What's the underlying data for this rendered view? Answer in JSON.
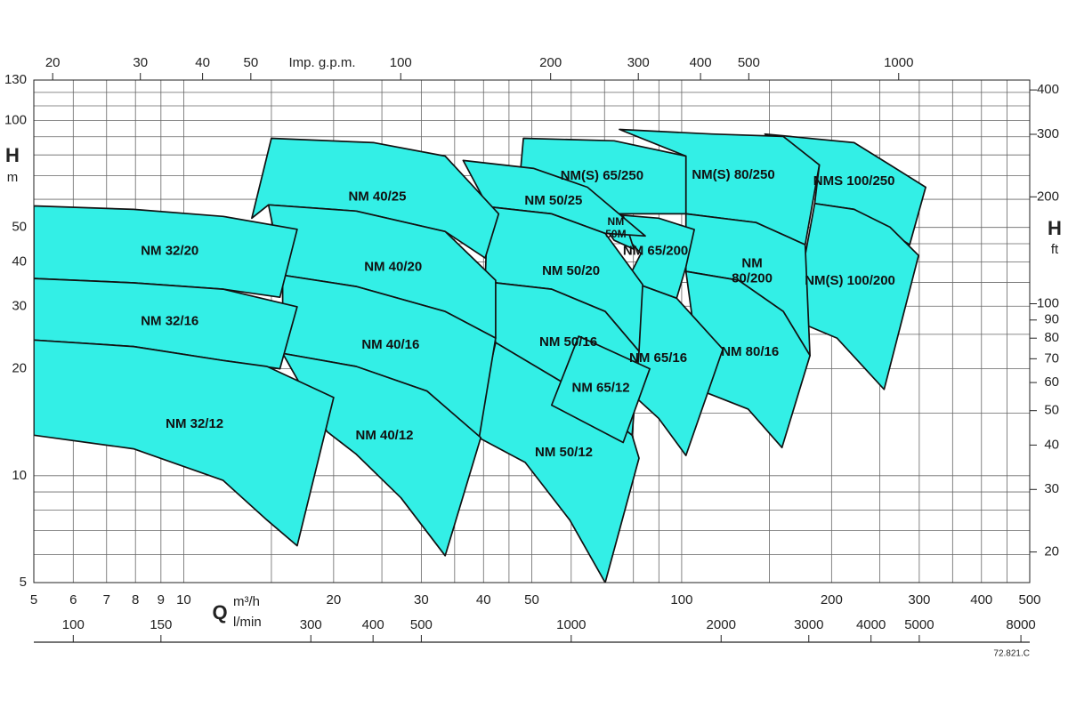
{
  "chart_data": {
    "type": "region",
    "xlim": [
      5,
      500
    ],
    "xscale": "log",
    "xticks": [
      5,
      6,
      7,
      8,
      9,
      10,
      20,
      30,
      40,
      50,
      100,
      200,
      300,
      400,
      500
    ],
    "xgrid": [
      15,
      25,
      35,
      45,
      60,
      70,
      80,
      90,
      150,
      250,
      350,
      450
    ],
    "ylim": [
      5,
      130
    ],
    "yscale": "log",
    "yticks": [
      5,
      10,
      20,
      30,
      40,
      50,
      100,
      130
    ],
    "ygrid": [
      6,
      7,
      8,
      9,
      15,
      25,
      35,
      45,
      60,
      70,
      80,
      90,
      110,
      120
    ],
    "x2lim": [
      18.33,
      1833
    ],
    "x2ticks": [
      20,
      30,
      40,
      50,
      100,
      200,
      300,
      400,
      500,
      1000
    ],
    "x3lim": [
      83.33,
      8333
    ],
    "x3ticks": [
      100,
      150,
      300,
      400,
      500,
      1000,
      2000,
      3000,
      4000,
      5000,
      8000
    ],
    "y2lim": [
      16.4,
      426.5
    ],
    "y2ticks": [
      20,
      30,
      40,
      50,
      60,
      70,
      80,
      90,
      100,
      200,
      300,
      400
    ],
    "x_label": "Q",
    "x_unit": "m³/h",
    "x2_unit": "Imp. g.p.m.",
    "x3_unit": "l/min",
    "y_label": "H",
    "y_unit": "m",
    "y2_label": "H",
    "y2_unit": "ft",
    "code": "72.821.C",
    "grid": true,
    "color": "#33efe6",
    "regions": [
      {
        "label": [
          "NMS 100/250"
        ],
        "q": [
          147,
          222,
          262,
          309,
          287,
          222,
          185,
          189
        ],
        "h": [
          91.6,
          86.6,
          75,
          64.9,
          44.7,
          56.2,
          58.4,
          75
        ]
      },
      {
        "label": [
          "NM(S) 100/200"
        ],
        "q": [
          185,
          222,
          262,
          299,
          255,
          205,
          177,
          170
        ],
        "h": [
          58.4,
          56.2,
          50.1,
          41.7,
          17.5,
          24.4,
          26.6,
          30.7
        ]
      },
      {
        "label": [
          "NM(S) 80/250"
        ],
        "q": [
          75,
          115,
          160,
          189,
          177,
          141,
          102,
          102
        ],
        "h": [
          94.4,
          91.6,
          90.2,
          75,
          44.7,
          51.6,
          54.6,
          79.4
        ]
      },
      {
        "label": [
          "NM",
          "80/200"
        ],
        "q": [
          102,
          141,
          177,
          181,
          160,
          130,
          102
        ],
        "h": [
          54.6,
          51.6,
          44.7,
          21.8,
          29.0,
          35.5,
          37.6
        ]
      },
      {
        "label": [
          "NM 80/16"
        ],
        "q": [
          102,
          130,
          160,
          181,
          159,
          136,
          110
        ],
        "h": [
          37.6,
          35.5,
          29.0,
          21.8,
          12.0,
          15.4,
          17.3
        ]
      },
      {
        "label": [
          "NM(S) 65/250"
        ],
        "q": [
          48.1,
          73.2,
          102,
          102,
          70.2,
          62.1,
          47.5
        ],
        "h": [
          89.1,
          87.7,
          79.4,
          54.6,
          54.6,
          59.6,
          72.9
        ]
      },
      {
        "label": [
          "NM 65/200"
        ],
        "q": [
          70.2,
          89.9,
          106,
          102,
          97.7,
          77.8,
          82.8
        ],
        "h": [
          54.6,
          53.1,
          49.3,
          38.7,
          31.6,
          35.5,
          42.2
        ]
      },
      {
        "label": [
          "NM",
          "50M"
        ],
        "q": [
          66.0,
          76.3,
          80.2,
          73.2
        ],
        "h": [
          56.2,
          54.0,
          43.4,
          46.0
        ]
      },
      {
        "label": [
          "NM 65/16"
        ],
        "q": [
          77.8,
          97.7,
          121,
          102,
          89.9,
          82.1,
          76.3,
          79.5
        ],
        "h": [
          35.5,
          31.6,
          22.7,
          11.4,
          14.5,
          16.3,
          19.4,
          32.5
        ]
      },
      {
        "label": [
          "NM 50/25"
        ],
        "q": [
          36.4,
          50.5,
          64.7,
          84.5,
          70.2,
          54.8,
          40.8
        ],
        "h": [
          77.2,
          73.3,
          64.9,
          47.3,
          48.1,
          54.6,
          57.2
        ]
      },
      {
        "label": [
          "NM 50/20"
        ],
        "q": [
          40.8,
          54.8,
          70.2,
          83.5,
          82.1,
          70.2,
          54.8,
          40.3
        ],
        "h": [
          57.2,
          54.6,
          48.1,
          34.5,
          22.4,
          29.0,
          33.5,
          35.2
        ]
      },
      {
        "label": [
          "NM 50/16"
        ],
        "q": [
          40.3,
          54.8,
          70.2,
          82.1,
          79.5,
          59.6,
          42.3
        ],
        "h": [
          35.2,
          33.5,
          29.0,
          22.4,
          13.0,
          17.8,
          23.7
        ]
      },
      {
        "label": [
          "NM 50/12"
        ],
        "q": [
          42.3,
          59.6,
          79.5,
          82.1,
          70.2,
          59.6,
          48.5,
          38.3
        ],
        "h": [
          23.7,
          17.8,
          13.0,
          11.2,
          5.0,
          7.5,
          10.9,
          13.0
        ]
      },
      {
        "label": [
          "NM 65/12"
        ],
        "q": [
          62.1,
          86.3,
          76.3,
          54.8
        ],
        "h": [
          24.7,
          20.0,
          12.4,
          15.8
        ]
      },
      {
        "label": [
          "NM 40/25"
        ],
        "q": [
          15.0,
          24.1,
          33.5,
          42.9,
          40.3,
          33.5,
          22.2,
          14.8,
          13.7
        ],
        "h": [
          89.1,
          86.6,
          79.4,
          54.6,
          41.0,
          48.7,
          55.6,
          57.9,
          53.1
        ]
      },
      {
        "label": [
          "NM 40/20"
        ],
        "q": [
          14.8,
          22.2,
          33.5,
          42.3,
          42.3,
          33.5,
          22.2,
          15.8
        ],
        "h": [
          57.9,
          55.6,
          48.7,
          35.5,
          24.4,
          29.0,
          34.1,
          36.7
        ]
      },
      {
        "label": [
          "NM 40/16"
        ],
        "q": [
          15.8,
          22.2,
          33.5,
          42.3,
          39.2,
          30.8,
          22.2,
          15.8
        ],
        "h": [
          36.7,
          34.1,
          29.0,
          24.4,
          12.8,
          17.3,
          20.3,
          22.1
        ]
      },
      {
        "label": [
          "NM 40/12"
        ],
        "q": [
          15.8,
          22.2,
          30.8,
          39.5,
          33.5,
          27.3,
          22.2,
          19.4
        ],
        "h": [
          22.1,
          20.3,
          17.3,
          12.8,
          5.95,
          8.66,
          11.5,
          13.3
        ]
      },
      {
        "label": [
          "NM 32/20"
        ],
        "q": [
          5,
          7.93,
          12.0,
          16.9,
          15.6,
          12.0,
          7.93,
          5
        ],
        "h": [
          57.5,
          56.2,
          53.7,
          49.4,
          31.8,
          33.5,
          34.9,
          35.9
        ]
      },
      {
        "label": [
          "NM 32/16"
        ],
        "q": [
          5,
          7.93,
          12.0,
          16.9,
          15.6,
          12.0,
          7.93,
          5
        ],
        "h": [
          35.9,
          34.9,
          33.5,
          29.9,
          20,
          21.1,
          23.1,
          24.1
        ]
      },
      {
        "label": [
          "NM 32/12"
        ],
        "q": [
          5,
          7.93,
          12.0,
          14.7,
          20.0,
          16.9,
          14.7,
          12.0,
          7.93,
          5
        ],
        "h": [
          24.1,
          23.1,
          21.1,
          20.3,
          16.6,
          6.35,
          7.5,
          9.7,
          11.9,
          13.0
        ]
      }
    ]
  }
}
